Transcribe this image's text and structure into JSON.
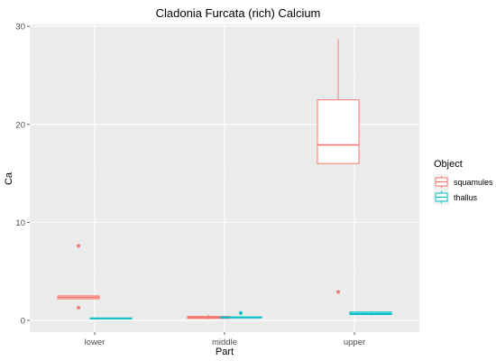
{
  "chart_data": {
    "type": "boxplot",
    "title": "Cladonia Furcata (rich) Calcium",
    "xlabel": "Part",
    "ylabel": "Ca",
    "categories": [
      "lower",
      "middle",
      "upper"
    ],
    "ylim": [
      -1.2,
      30.2
    ],
    "yticks": [
      0,
      10,
      20,
      30
    ],
    "grid": true,
    "legend": {
      "title": "Object",
      "position": "right"
    },
    "series": [
      {
        "name": "squamules",
        "color": "#F8766D",
        "boxes": [
          {
            "category": "lower",
            "min": 2.2,
            "q1": 2.2,
            "median": 2.35,
            "q3": 2.5,
            "max": 2.5,
            "outliers": [
              7.6,
              1.3
            ]
          },
          {
            "category": "middle",
            "min": 0.1,
            "q1": 0.2,
            "median": 0.3,
            "q3": 0.4,
            "max": 0.6,
            "outliers": []
          },
          {
            "category": "upper",
            "min": 16.0,
            "q1": 16.0,
            "median": 17.9,
            "q3": 22.5,
            "max": 28.7,
            "outliers": [
              2.9
            ]
          }
        ]
      },
      {
        "name": "thallus",
        "color": "#00BFC4",
        "boxes": [
          {
            "category": "lower",
            "min": 0.15,
            "q1": 0.15,
            "median": 0.2,
            "q3": 0.25,
            "max": 0.25,
            "outliers": []
          },
          {
            "category": "middle",
            "min": 0.25,
            "q1": 0.25,
            "median": 0.3,
            "q3": 0.35,
            "max": 0.4,
            "outliers": [
              0.75
            ]
          },
          {
            "category": "upper",
            "min": 0.5,
            "q1": 0.6,
            "median": 0.7,
            "q3": 0.85,
            "max": 0.9,
            "outliers": []
          }
        ]
      }
    ]
  },
  "colors": {
    "panel_background": "#EBEBEB",
    "grid_major": "#FFFFFF",
    "grid_minor": "#F2F2F2"
  }
}
